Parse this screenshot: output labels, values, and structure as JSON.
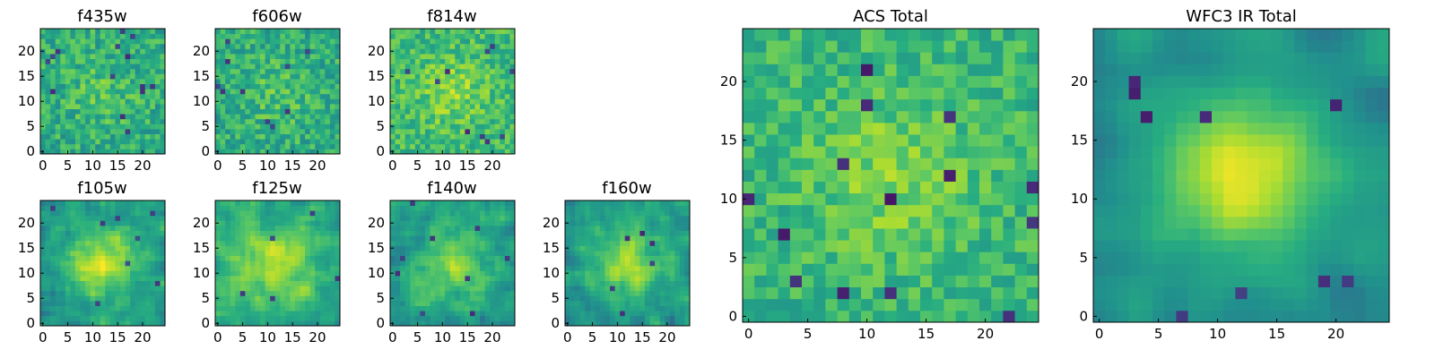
{
  "chart_data": [
    {
      "type": "heatmap",
      "title": "f435w",
      "xticks": [
        "0",
        "5",
        "10",
        "15",
        "20"
      ],
      "yticks": [
        "0",
        "5",
        "10",
        "15",
        "20"
      ],
      "grid_size": 25,
      "xlim": [
        0,
        24
      ],
      "ylim": [
        0,
        24
      ],
      "colormap": "viridis",
      "seed": 11,
      "smooth": 0,
      "center_peak": 0.1,
      "base": 0.62,
      "noise": 0.3,
      "dark_spots": 14,
      "dark_value": 0.12
    },
    {
      "type": "heatmap",
      "title": "f606w",
      "xticks": [
        "0",
        "5",
        "10",
        "15",
        "20"
      ],
      "yticks": [
        "0",
        "5",
        "10",
        "15",
        "20"
      ],
      "grid_size": 25,
      "xlim": [
        0,
        24
      ],
      "ylim": [
        0,
        24
      ],
      "colormap": "viridis",
      "seed": 23,
      "smooth": 0,
      "center_peak": 0.1,
      "base": 0.62,
      "noise": 0.3,
      "dark_spots": 10,
      "dark_value": 0.12
    },
    {
      "type": "heatmap",
      "title": "f814w",
      "xticks": [
        "0",
        "5",
        "10",
        "15",
        "20"
      ],
      "yticks": [
        "0",
        "5",
        "10",
        "15",
        "20"
      ],
      "grid_size": 25,
      "xlim": [
        0,
        24
      ],
      "ylim": [
        0,
        24
      ],
      "colormap": "viridis",
      "seed": 37,
      "smooth": 0,
      "center_peak": 0.15,
      "base": 0.68,
      "noise": 0.28,
      "dark_spots": 10,
      "dark_value": 0.12
    },
    {
      "type": "heatmap",
      "title": "f105w",
      "xticks": [
        "0",
        "5",
        "10",
        "15",
        "20"
      ],
      "yticks": [
        "0",
        "5",
        "10",
        "15",
        "20"
      ],
      "grid_size": 25,
      "xlim": [
        0,
        24
      ],
      "ylim": [
        0,
        24
      ],
      "colormap": "viridis",
      "seed": 41,
      "smooth": 1,
      "center_peak": 0.4,
      "base": 0.55,
      "noise": 0.32,
      "dark_spots": 8,
      "dark_value": 0.15
    },
    {
      "type": "heatmap",
      "title": "f125w",
      "xticks": [
        "0",
        "5",
        "10",
        "15",
        "20"
      ],
      "yticks": [
        "0",
        "5",
        "10",
        "15",
        "20"
      ],
      "grid_size": 25,
      "xlim": [
        0,
        24
      ],
      "ylim": [
        0,
        24
      ],
      "colormap": "viridis",
      "seed": 53,
      "smooth": 1,
      "center_peak": 0.25,
      "base": 0.62,
      "noise": 0.32,
      "dark_spots": 5,
      "dark_value": 0.15
    },
    {
      "type": "heatmap",
      "title": "f140w",
      "xticks": [
        "0",
        "5",
        "10",
        "15",
        "20"
      ],
      "yticks": [
        "0",
        "5",
        "10",
        "15",
        "20"
      ],
      "grid_size": 25,
      "xlim": [
        0,
        24
      ],
      "ylim": [
        0,
        24
      ],
      "colormap": "viridis",
      "seed": 67,
      "smooth": 1,
      "center_peak": 0.25,
      "base": 0.55,
      "noise": 0.32,
      "dark_spots": 9,
      "dark_value": 0.12
    },
    {
      "type": "heatmap",
      "title": "f160w",
      "xticks": [
        "0",
        "5",
        "10",
        "15",
        "20"
      ],
      "yticks": [
        "0",
        "5",
        "10",
        "15",
        "20"
      ],
      "grid_size": 25,
      "xlim": [
        0,
        24
      ],
      "ylim": [
        0,
        24
      ],
      "colormap": "viridis",
      "seed": 79,
      "smooth": 1,
      "center_peak": 0.35,
      "base": 0.52,
      "noise": 0.32,
      "dark_spots": 6,
      "dark_value": 0.1
    },
    {
      "type": "heatmap",
      "title": "ACS Total",
      "xticks": [
        "0",
        "5",
        "10",
        "15",
        "20"
      ],
      "yticks": [
        "0",
        "5",
        "10",
        "15",
        "20"
      ],
      "grid_size": 25,
      "xlim": [
        0,
        24
      ],
      "ylim": [
        0,
        24
      ],
      "colormap": "viridis",
      "seed": 97,
      "smooth": 0,
      "center_peak": 0.15,
      "base": 0.66,
      "noise": 0.24,
      "dark_spots": 14,
      "dark_value": 0.05
    },
    {
      "type": "heatmap",
      "title": "WFC3 IR Total",
      "xticks": [
        "0",
        "5",
        "10",
        "15",
        "20"
      ],
      "yticks": [
        "0",
        "5",
        "10",
        "15",
        "20"
      ],
      "grid_size": 25,
      "xlim": [
        0,
        24
      ],
      "ylim": [
        0,
        24
      ],
      "colormap": "viridis",
      "seed": 113,
      "smooth": 2,
      "center_peak": 0.45,
      "base": 0.5,
      "noise": 0.22,
      "dark_spots": 9,
      "dark_value": 0.08
    }
  ]
}
